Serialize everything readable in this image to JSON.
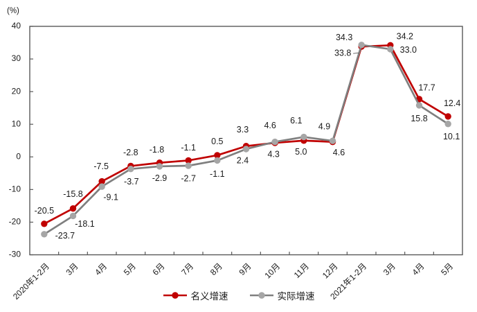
{
  "chart_data": {
    "type": "line",
    "title": "",
    "unit_label": "(%)",
    "categories": [
      "2020年1-2月",
      "3月",
      "4月",
      "5月",
      "6月",
      "7月",
      "8月",
      "9月",
      "10月",
      "11月",
      "12月",
      "2021年1-2月",
      "3月",
      "4月",
      "5月"
    ],
    "series": [
      {
        "name": "名义增速",
        "key": "nominal",
        "line_color": "#c00000",
        "marker_color": "#c00000",
        "values": [
          -20.5,
          -15.8,
          -7.5,
          -2.8,
          -1.8,
          -1.1,
          0.5,
          3.3,
          4.3,
          5.0,
          4.6,
          33.8,
          34.2,
          17.7,
          12.4
        ]
      },
      {
        "name": "实际增速",
        "key": "real",
        "line_color": "#7f7f7f",
        "marker_color": "#a6a6a6",
        "values": [
          -23.7,
          -18.1,
          -9.1,
          -3.7,
          -2.9,
          -2.7,
          -1.1,
          2.4,
          4.6,
          6.1,
          4.9,
          34.3,
          33.0,
          15.8,
          10.1
        ]
      }
    ],
    "ylim": [
      -30,
      40
    ],
    "yticks": [
      40,
      30,
      20,
      10,
      0,
      -10,
      -20,
      -30
    ],
    "grid": false,
    "legend_position": "bottom",
    "axis_color": "#595959",
    "text_color": "#1a1a1a",
    "label_decimals": 1,
    "label_offsets": {
      "nominal": [
        [
          0,
          -18
        ],
        [
          0,
          -20
        ],
        [
          -1,
          -21
        ],
        [
          0,
          -19
        ],
        [
          -4,
          -18
        ],
        [
          0,
          -18
        ],
        [
          0,
          -19
        ],
        [
          -5,
          -23
        ],
        [
          -2,
          17
        ],
        [
          -4,
          17
        ],
        [
          9,
          16
        ],
        [
          -27,
          10
        ],
        [
          21,
          -12
        ],
        [
          11,
          -16
        ],
        [
          6,
          -18
        ]
      ],
      "real": [
        [
          30,
          3
        ],
        [
          17,
          12
        ],
        [
          13,
          16
        ],
        [
          1,
          19
        ],
        [
          0,
          18
        ],
        [
          0,
          19
        ],
        [
          0,
          20
        ],
        [
          -5,
          17
        ],
        [
          -7,
          -23
        ],
        [
          -11,
          -23
        ],
        [
          -12,
          -20
        ],
        [
          -25,
          -10
        ],
        [
          26,
          2
        ],
        [
          0,
          20
        ],
        [
          5,
          19
        ]
      ]
    },
    "leader_lines": [
      {
        "series": 0,
        "index": 11
      }
    ]
  }
}
